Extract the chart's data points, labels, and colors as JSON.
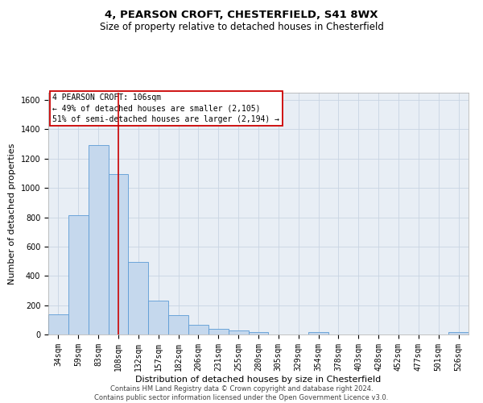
{
  "title1": "4, PEARSON CROFT, CHESTERFIELD, S41 8WX",
  "title2": "Size of property relative to detached houses in Chesterfield",
  "xlabel": "Distribution of detached houses by size in Chesterfield",
  "ylabel": "Number of detached properties",
  "categories": [
    "34sqm",
    "59sqm",
    "83sqm",
    "108sqm",
    "132sqm",
    "157sqm",
    "182sqm",
    "206sqm",
    "231sqm",
    "255sqm",
    "280sqm",
    "305sqm",
    "329sqm",
    "354sqm",
    "378sqm",
    "403sqm",
    "428sqm",
    "452sqm",
    "477sqm",
    "501sqm",
    "526sqm"
  ],
  "values": [
    135,
    815,
    1295,
    1095,
    495,
    230,
    130,
    65,
    40,
    27,
    15,
    0,
    0,
    15,
    0,
    0,
    0,
    0,
    0,
    0,
    15
  ],
  "bar_color": "#c5d8ed",
  "bar_edge_color": "#5b9bd5",
  "line_x_index": 3,
  "line_color": "#cc0000",
  "ylim": [
    0,
    1650
  ],
  "yticks": [
    0,
    200,
    400,
    600,
    800,
    1000,
    1200,
    1400,
    1600
  ],
  "annotation_title": "4 PEARSON CROFT: 106sqm",
  "annotation_line1": "← 49% of detached houses are smaller (2,105)",
  "annotation_line2": "51% of semi-detached houses are larger (2,194) →",
  "annotation_box_color": "#cc0000",
  "grid_color": "#c8d4e3",
  "background_color": "#e8eef5",
  "footer1": "Contains HM Land Registry data © Crown copyright and database right 2024.",
  "footer2": "Contains public sector information licensed under the Open Government Licence v3.0.",
  "title_fontsize": 9.5,
  "subtitle_fontsize": 8.5,
  "axis_label_fontsize": 8,
  "tick_fontsize": 7,
  "annotation_fontsize": 7,
  "footer_fontsize": 6
}
